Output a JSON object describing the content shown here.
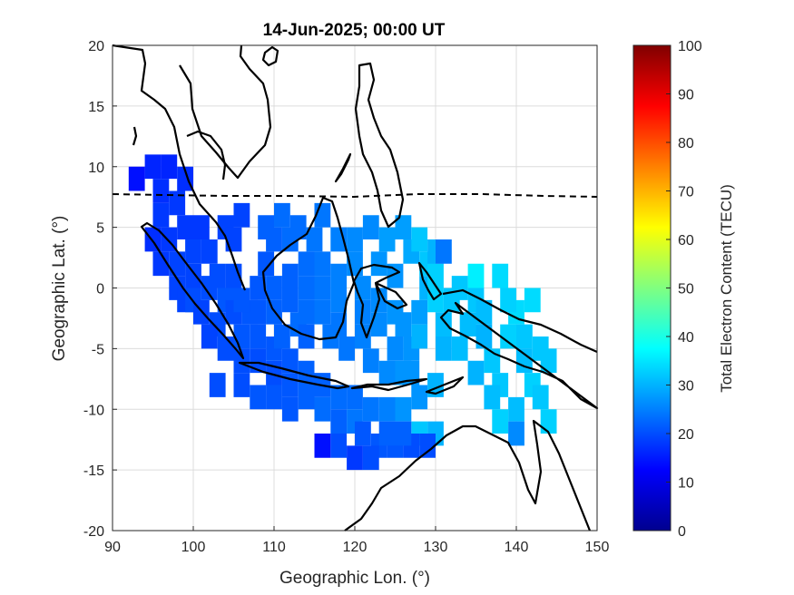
{
  "chart_data": {
    "type": "heatmap",
    "title": "14-Jun-2025; 00:00 UT",
    "xlabel": "Geographic Lon. (°)",
    "ylabel": "Geographic Lat. (°)",
    "xlim": [
      90,
      150
    ],
    "ylim": [
      -20,
      20
    ],
    "xticks": [
      90,
      100,
      110,
      120,
      130,
      140,
      150
    ],
    "yticks": [
      20,
      15,
      10,
      5,
      0,
      -5,
      -10,
      -15,
      -20
    ],
    "grid": true,
    "colorbar": {
      "label": "Total Electron Content (TECU)",
      "range": [
        0,
        100
      ],
      "ticks": [
        0,
        10,
        20,
        30,
        40,
        50,
        60,
        70,
        80,
        90,
        100
      ],
      "colormap": "jet",
      "colors": [
        "#00008f",
        "#0000ff",
        "#0080ff",
        "#00ffff",
        "#80ff80",
        "#ffff00",
        "#ff8000",
        "#ff0000",
        "#800000"
      ]
    },
    "tec_cells": [
      [
        93,
        9,
        14
      ],
      [
        95,
        10,
        16
      ],
      [
        96,
        8,
        17
      ],
      [
        97,
        10,
        16
      ],
      [
        96,
        6,
        18
      ],
      [
        98,
        7,
        18
      ],
      [
        99,
        9,
        17
      ],
      [
        95,
        4,
        17
      ],
      [
        96,
        2,
        18
      ],
      [
        97,
        4,
        18
      ],
      [
        98,
        2,
        19
      ],
      [
        98,
        0,
        19
      ],
      [
        99,
        5,
        18
      ],
      [
        100,
        3,
        19
      ],
      [
        100,
        1,
        19
      ],
      [
        99,
        -1,
        19
      ],
      [
        100,
        -1,
        20
      ],
      [
        101,
        -2,
        19
      ],
      [
        102,
        0,
        20
      ],
      [
        101,
        5,
        18
      ],
      [
        102,
        3,
        19
      ],
      [
        103,
        1,
        20
      ],
      [
        103,
        -3,
        20
      ],
      [
        104,
        -1,
        21
      ],
      [
        102,
        -4,
        19
      ],
      [
        104,
        -5,
        20
      ],
      [
        105,
        -2,
        20
      ],
      [
        106,
        -4,
        21
      ],
      [
        106,
        -6,
        20
      ],
      [
        107,
        -2,
        21
      ],
      [
        108,
        -4,
        21
      ],
      [
        108,
        -6,
        20
      ],
      [
        110,
        -5,
        21
      ],
      [
        110,
        -7,
        20
      ],
      [
        112,
        -6,
        21
      ],
      [
        112,
        -8,
        21
      ],
      [
        114,
        -7,
        22
      ],
      [
        114,
        -9,
        22
      ],
      [
        116,
        -8,
        22
      ],
      [
        116,
        -10,
        23
      ],
      [
        118,
        -9,
        23
      ],
      [
        118,
        -11,
        22
      ],
      [
        120,
        -9,
        23
      ],
      [
        120,
        -11,
        24
      ],
      [
        122,
        -10,
        24
      ],
      [
        124,
        -10,
        25
      ],
      [
        126,
        -10,
        27
      ],
      [
        128,
        -9,
        27
      ],
      [
        103,
        -8,
        20
      ],
      [
        106,
        -8,
        20
      ],
      [
        108,
        -9,
        21
      ],
      [
        110,
        -9,
        21
      ],
      [
        112,
        -10,
        21
      ],
      [
        105,
        1,
        20
      ],
      [
        106,
        -1,
        21
      ],
      [
        108,
        0,
        21
      ],
      [
        108,
        -2,
        21
      ],
      [
        109,
        2,
        21
      ],
      [
        110,
        0,
        22
      ],
      [
        110,
        -2,
        22
      ],
      [
        111,
        -4,
        22
      ],
      [
        112,
        1,
        22
      ],
      [
        112,
        -1,
        22
      ],
      [
        113,
        -3,
        23
      ],
      [
        114,
        2,
        23
      ],
      [
        114,
        0,
        23
      ],
      [
        114,
        -2,
        23
      ],
      [
        114,
        -4,
        22
      ],
      [
        115,
        4,
        24
      ],
      [
        116,
        6,
        24
      ],
      [
        116,
        2,
        24
      ],
      [
        116,
        0,
        24
      ],
      [
        116,
        -2,
        24
      ],
      [
        117,
        -4,
        24
      ],
      [
        118,
        4,
        25
      ],
      [
        118,
        1,
        25
      ],
      [
        118,
        -1,
        25
      ],
      [
        118,
        -3,
        24
      ],
      [
        119,
        -5,
        24
      ],
      [
        120,
        4,
        26
      ],
      [
        120,
        2,
        26
      ],
      [
        121,
        0,
        26
      ],
      [
        121,
        -2,
        25
      ],
      [
        121,
        -4,
        25
      ],
      [
        122,
        5,
        26
      ],
      [
        123,
        2,
        27
      ],
      [
        123,
        -1,
        26
      ],
      [
        123,
        -3,
        26
      ],
      [
        122,
        -6,
        25
      ],
      [
        124,
        4,
        28
      ],
      [
        125,
        1,
        27
      ],
      [
        125,
        -2,
        27
      ],
      [
        126,
        5,
        28
      ],
      [
        127,
        3,
        29
      ],
      [
        126,
        -3,
        27
      ],
      [
        125,
        -5,
        26
      ],
      [
        127,
        -5,
        27
      ],
      [
        127,
        -7,
        27
      ],
      [
        109,
        5,
        22
      ],
      [
        110,
        4,
        22
      ],
      [
        112,
        4,
        23
      ],
      [
        111,
        6,
        23
      ],
      [
        113,
        5,
        23
      ],
      [
        104,
        5,
        19
      ],
      [
        106,
        6,
        19
      ],
      [
        105,
        4,
        19
      ],
      [
        124,
        -7,
        26
      ],
      [
        126,
        -7,
        27
      ],
      [
        129,
        2,
        32
      ],
      [
        129,
        0,
        30
      ],
      [
        128,
        -2,
        28
      ],
      [
        128,
        -4,
        30
      ],
      [
        130,
        -1,
        33
      ],
      [
        130,
        1,
        33
      ],
      [
        131,
        -3,
        31
      ],
      [
        132,
        -1,
        32
      ],
      [
        133,
        -5,
        31
      ],
      [
        131,
        -5,
        30
      ],
      [
        134,
        -3,
        31
      ],
      [
        135,
        -1,
        32
      ],
      [
        136,
        -2,
        31
      ],
      [
        136,
        -4,
        30
      ],
      [
        135,
        -7,
        30
      ],
      [
        137,
        -6,
        32
      ],
      [
        138,
        -8,
        32
      ],
      [
        137,
        -9,
        31
      ],
      [
        139,
        -4,
        33
      ],
      [
        140,
        -2,
        34
      ],
      [
        141,
        -4,
        32
      ],
      [
        141,
        -6,
        31
      ],
      [
        142,
        -8,
        33
      ],
      [
        143,
        -5,
        32
      ],
      [
        144,
        -6,
        32
      ],
      [
        139,
        -1,
        33
      ],
      [
        142,
        -1,
        34
      ],
      [
        138,
        -11,
        33
      ],
      [
        140,
        -10,
        31
      ],
      [
        143,
        -9,
        32
      ],
      [
        144,
        -11,
        33
      ],
      [
        140,
        -12,
        26
      ],
      [
        135,
        1,
        36
      ],
      [
        138,
        1,
        34
      ],
      [
        133,
        0,
        32
      ],
      [
        130,
        -8,
        30
      ],
      [
        130,
        -12,
        30
      ],
      [
        128,
        -12,
        32
      ],
      [
        128,
        4,
        32
      ],
      [
        130,
        3,
        30
      ],
      [
        131,
        3,
        24
      ],
      [
        121,
        -12,
        21
      ],
      [
        123,
        -13,
        21
      ],
      [
        125,
        -13,
        21
      ],
      [
        127,
        -13,
        20
      ],
      [
        129,
        -13,
        20
      ],
      [
        126,
        -12,
        22
      ],
      [
        118,
        -13,
        20
      ],
      [
        120,
        -14,
        18
      ],
      [
        116,
        -13,
        14
      ],
      [
        122,
        -14,
        20
      ],
      [
        124,
        -12,
        22
      ]
    ]
  }
}
